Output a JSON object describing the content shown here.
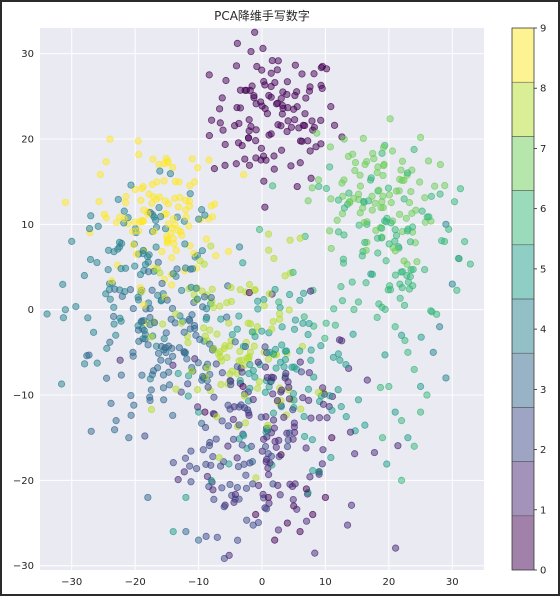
{
  "chart_data": {
    "type": "scatter",
    "title": "PCA降维手写数字",
    "xlabel": "",
    "ylabel": "",
    "xlim": [
      -35,
      35
    ],
    "ylim": [
      -30.5,
      33
    ],
    "xticks": [
      -30,
      -20,
      -10,
      0,
      10,
      20,
      30
    ],
    "yticks": [
      -30,
      -20,
      -10,
      0,
      10,
      20,
      30
    ],
    "grid": true,
    "background": "#eaeaf2",
    "colormap": "viridis",
    "color_levels": 10,
    "marker_alpha": 0.5,
    "colorbar": {
      "min": 0,
      "max": 9,
      "ticks": [
        0,
        1,
        2,
        3,
        4,
        5,
        6,
        7,
        8,
        9
      ],
      "colors": [
        "#440154",
        "#482878",
        "#3e4989",
        "#31688e",
        "#26828e",
        "#1f9e89",
        "#35b779",
        "#6ece58",
        "#b5de2b",
        "#fde725"
      ]
    },
    "clusters": [
      {
        "label": 0,
        "center": [
          2,
          22.5
        ],
        "spread": [
          5,
          4
        ],
        "n": 120
      },
      {
        "label": 1,
        "center": [
          2,
          -14
        ],
        "spread": [
          7,
          7
        ],
        "n": 110
      },
      {
        "label": 2,
        "center": [
          -4,
          -16
        ],
        "spread": [
          5,
          5
        ],
        "n": 80
      },
      {
        "label": 3,
        "center": [
          -15,
          -5
        ],
        "spread": [
          6,
          5
        ],
        "n": 100
      },
      {
        "label": 4,
        "center": [
          -18,
          4
        ],
        "spread": [
          6,
          5
        ],
        "n": 110
      },
      {
        "label": 5,
        "center": [
          3,
          -8
        ],
        "spread": [
          7,
          6
        ],
        "n": 100
      },
      {
        "label": 6,
        "center": [
          20,
          8
        ],
        "spread": [
          7,
          6
        ],
        "n": 110
      },
      {
        "label": 7,
        "center": [
          17,
          13
        ],
        "spread": [
          5,
          4
        ],
        "n": 90
      },
      {
        "label": 8,
        "center": [
          -4,
          -4
        ],
        "spread": [
          6,
          6
        ],
        "n": 110
      },
      {
        "label": 9,
        "center": [
          -16,
          11
        ],
        "spread": [
          5,
          4
        ],
        "n": 110
      }
    ],
    "extra_points": [
      {
        "label": 0,
        "points": [
          [
            -2,
            2
          ],
          [
            4,
            -25
          ],
          [
            6,
            -26
          ],
          [
            8,
            -24
          ],
          [
            2,
            -27
          ],
          [
            10,
            -22
          ],
          [
            -9,
            -12
          ],
          [
            -3,
            -9
          ],
          [
            7,
            -21
          ],
          [
            -1,
            -24
          ],
          [
            9,
            -19
          ],
          [
            5,
            -23
          ],
          [
            1,
            -22
          ],
          [
            3,
            -17
          ],
          [
            11,
            -15
          ]
        ]
      },
      {
        "label": 4,
        "points": [
          [
            -31,
            0
          ],
          [
            -30,
            8
          ],
          [
            -27,
            11
          ],
          [
            -28,
            4
          ],
          [
            28,
            -2
          ],
          [
            30,
            3
          ],
          [
            27,
            -5
          ],
          [
            29,
            -8
          ],
          [
            31,
            6
          ],
          [
            29,
            10
          ]
        ]
      },
      {
        "label": 6,
        "points": [
          [
            23,
            -5
          ],
          [
            26,
            -10
          ],
          [
            22,
            -13
          ],
          [
            24,
            -16
          ],
          [
            22,
            -20
          ],
          [
            21,
            -2
          ],
          [
            24,
            -7
          ],
          [
            25,
            -12
          ],
          [
            19,
            -15
          ],
          [
            20,
            -9
          ]
        ]
      },
      {
        "label": 5,
        "points": [
          [
            22,
            -3
          ],
          [
            25,
            -9
          ],
          [
            21,
            -12
          ],
          [
            23,
            -15
          ],
          [
            -10,
            -12
          ],
          [
            -8,
            -20
          ],
          [
            -12,
            -22
          ],
          [
            -14,
            -26
          ]
        ]
      },
      {
        "label": 3,
        "points": [
          [
            -21,
            -15
          ],
          [
            -23,
            -13
          ],
          [
            -12,
            -26
          ],
          [
            -10,
            -27
          ],
          [
            -18,
            -22
          ]
        ]
      }
    ]
  }
}
